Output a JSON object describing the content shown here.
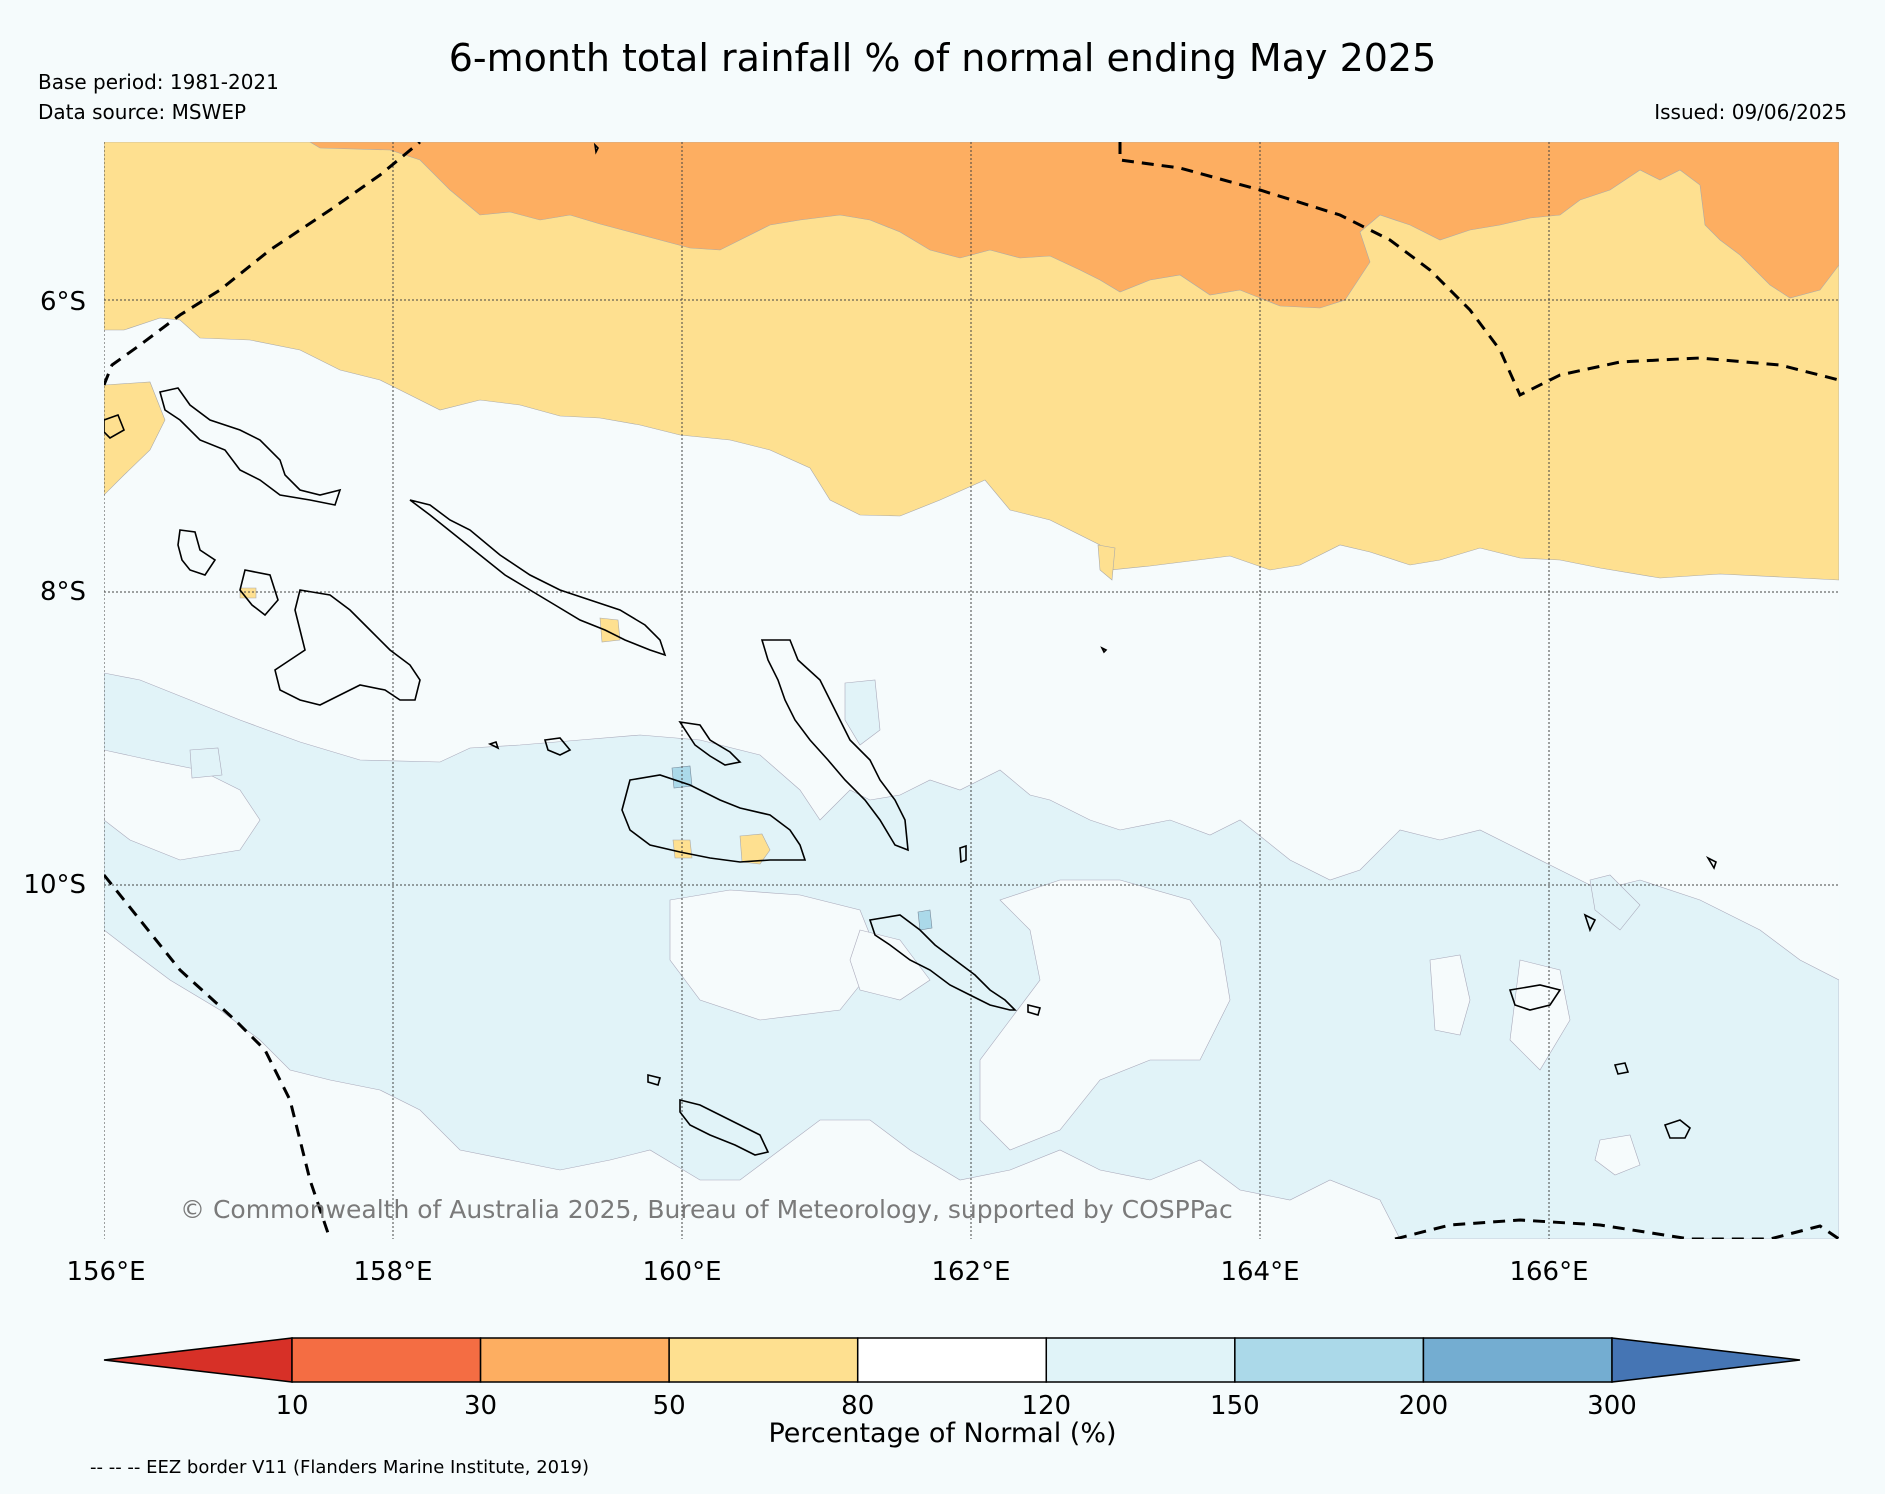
{
  "header": {
    "title": "6-month total rainfall % of normal ending May 2025",
    "base_period": "Base period: 1981-2021",
    "data_source": "Data source: MSWEP",
    "issued": "Issued: 09/06/2025"
  },
  "map": {
    "lat_labels": [
      "6°S",
      "8°S",
      "10°S"
    ],
    "lon_labels": [
      "156°E",
      "158°E",
      "160°E",
      "162°E",
      "164°E",
      "166°E"
    ],
    "copyright": "© Commonwealth of Australia 2025, Bureau of Meteorology, supported by COSPPac",
    "region": "Solomon Islands",
    "extent": {
      "lon_min": 156,
      "lon_max": 168,
      "lat_min": -12.4,
      "lat_max": -4.9
    }
  },
  "legend": {
    "title": "Percentage of Normal (%)",
    "tick_labels": [
      "10",
      "30",
      "50",
      "80",
      "120",
      "150",
      "200",
      "300"
    ],
    "colors": [
      "#d73027",
      "#f46d43",
      "#fdae61",
      "#fee090",
      "#ffffff",
      "#e0f3f8",
      "#abd9e9",
      "#74add1",
      "#4575b4"
    ],
    "eez_note": "-- -- -- EEZ border V11 (Flanders Marine Institute, 2019)"
  }
}
